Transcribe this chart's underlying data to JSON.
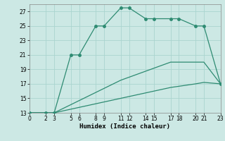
{
  "series": [
    {
      "x": [
        0,
        2,
        3,
        5,
        6,
        8,
        9,
        11,
        12,
        14,
        15,
        17,
        18,
        20,
        21,
        23
      ],
      "y": [
        13,
        13,
        13,
        21,
        21,
        25,
        25,
        27.5,
        27.5,
        26,
        26,
        26,
        26,
        25,
        25,
        17
      ],
      "marker_x": [
        0,
        2,
        3,
        5,
        6,
        8,
        9,
        11,
        12,
        14,
        15,
        17,
        18,
        20,
        21,
        23
      ],
      "marker_y": [
        13,
        13,
        13,
        21,
        21,
        25,
        25,
        27.5,
        27.5,
        26,
        26,
        26,
        26,
        25,
        25,
        17
      ]
    },
    {
      "x": [
        0,
        3,
        11,
        17,
        20,
        21,
        23
      ],
      "y": [
        13,
        13,
        17.5,
        20,
        20,
        20,
        17
      ],
      "marker_x": [],
      "marker_y": []
    },
    {
      "x": [
        0,
        3,
        11,
        17,
        20,
        21,
        23
      ],
      "y": [
        13,
        13,
        15,
        16.5,
        17,
        17.2,
        17
      ],
      "marker_x": [],
      "marker_y": []
    }
  ],
  "line_color": "#2e8b72",
  "background_color": "#cce8e4",
  "grid_color": "#aad4cf",
  "xlabel": "Humidex (Indice chaleur)",
  "xlim": [
    0,
    23
  ],
  "ylim": [
    13,
    28
  ],
  "xticks": [
    0,
    2,
    3,
    5,
    6,
    8,
    9,
    11,
    12,
    14,
    15,
    17,
    18,
    20,
    21,
    23
  ],
  "yticks": [
    13,
    15,
    17,
    19,
    21,
    23,
    25,
    27
  ],
  "tick_fontsize": 5.5,
  "xlabel_fontsize": 6.5,
  "marker_size": 2.5,
  "line_width": 0.9
}
